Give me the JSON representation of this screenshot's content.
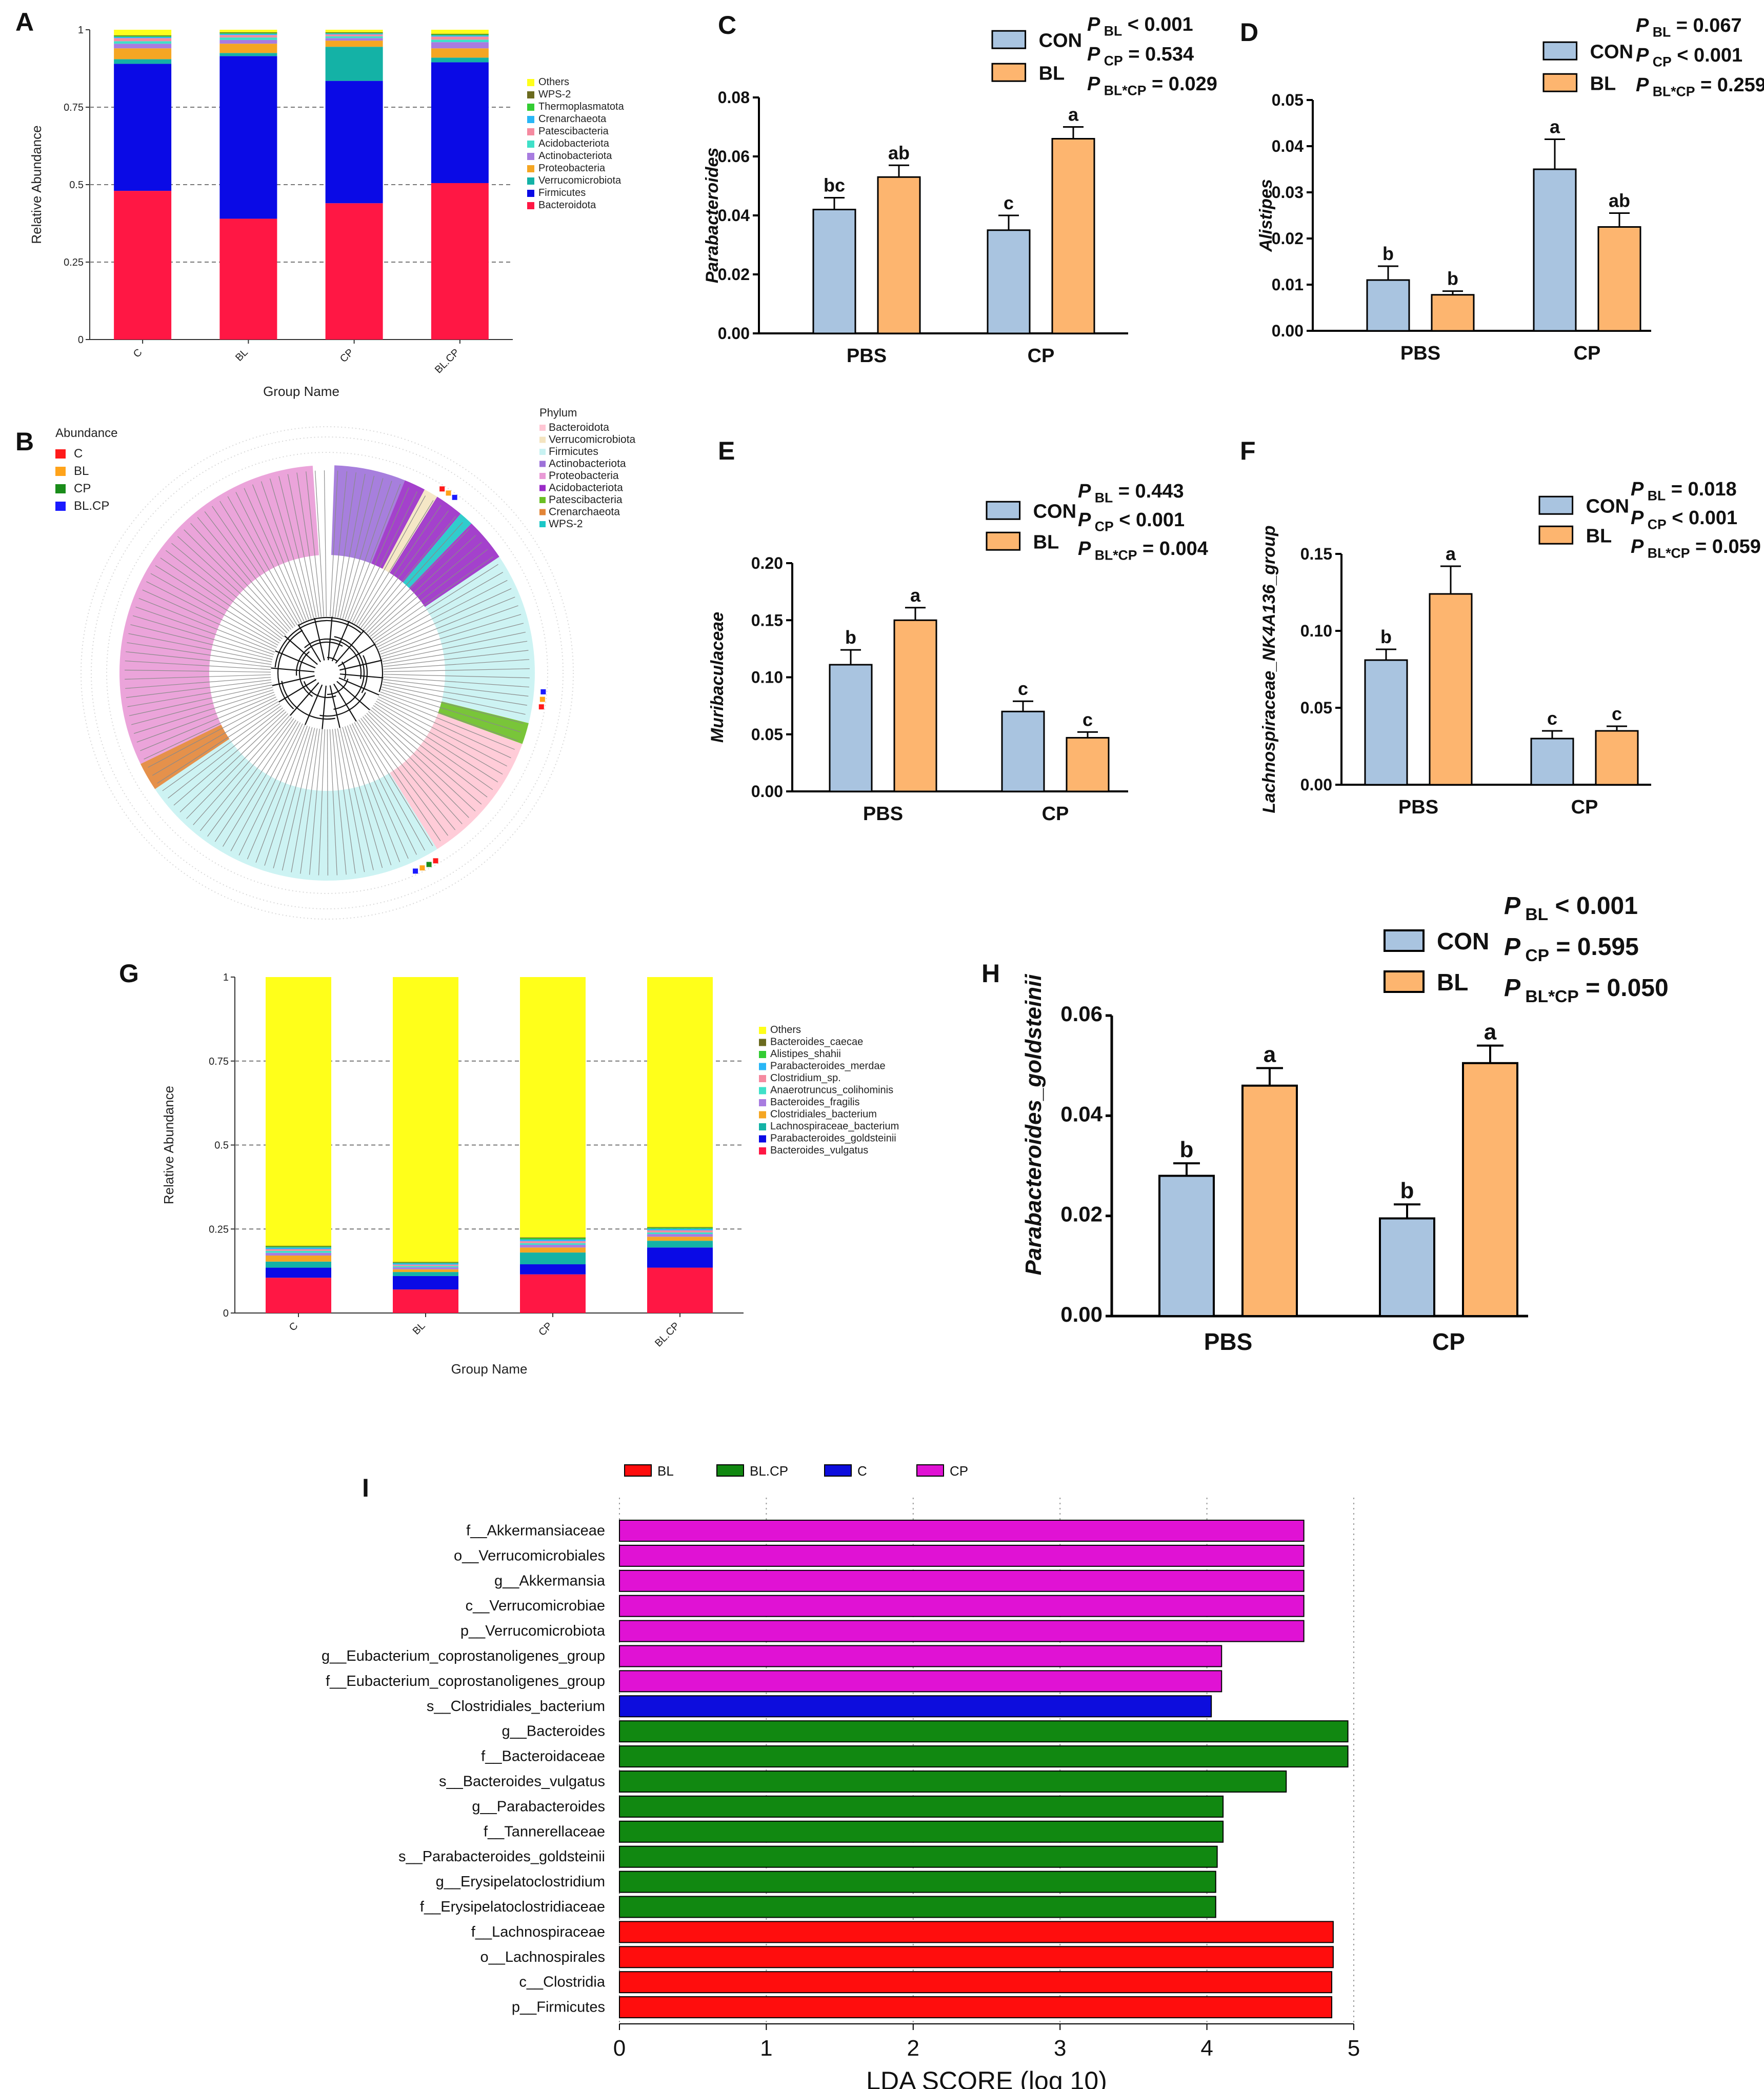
{
  "panels": {
    "A": "A",
    "B": "B",
    "C": "C",
    "D": "D",
    "E": "E",
    "F": "F",
    "G": "G",
    "H": "H",
    "I": "I"
  },
  "colors": {
    "con": "#a9c4e0",
    "bl": "#fdb56f"
  },
  "chart_data": [
    {
      "id": "A",
      "type": "stacked_bar",
      "ylabel": "Relative Abundance",
      "xlabel": "Group Name",
      "categories": [
        "C",
        "BL",
        "CP",
        "BL.CP"
      ],
      "yticks": [
        "0",
        "0.25",
        "0.5",
        "0.75",
        "1"
      ],
      "series": [
        {
          "name": "Bacteroidota",
          "color": "#ff1744",
          "values": [
            0.48,
            0.39,
            0.44,
            0.505
          ]
        },
        {
          "name": "Firmicutes",
          "color": "#0a0ae6",
          "values": [
            0.41,
            0.525,
            0.395,
            0.39
          ]
        },
        {
          "name": "Verrucomicrobiota",
          "color": "#14b2a6",
          "values": [
            0.015,
            0.01,
            0.11,
            0.015
          ]
        },
        {
          "name": "Proteobacteria",
          "color": "#f5a623",
          "values": [
            0.035,
            0.03,
            0.02,
            0.03
          ]
        },
        {
          "name": "Actinobacteriota",
          "color": "#a87ce0",
          "values": [
            0.015,
            0.012,
            0.008,
            0.02
          ]
        },
        {
          "name": "Acidobacteriota",
          "color": "#3fe0c8",
          "values": [
            0.008,
            0.008,
            0.006,
            0.008
          ]
        },
        {
          "name": "Patescibacteria",
          "color": "#f58aa0",
          "values": [
            0.01,
            0.008,
            0.006,
            0.01
          ]
        },
        {
          "name": "Crenarchaeota",
          "color": "#29b6f6",
          "values": [
            0.004,
            0.004,
            0.003,
            0.004
          ]
        },
        {
          "name": "Thermoplasmatota",
          "color": "#33cc33",
          "values": [
            0.003,
            0.003,
            0.002,
            0.003
          ]
        },
        {
          "name": "WPS-2",
          "color": "#6b6b1f",
          "values": [
            0.002,
            0.002,
            0.002,
            0.002
          ]
        },
        {
          "name": "Others",
          "color": "#ffff1a",
          "values": [
            0.018,
            0.008,
            0.008,
            0.013
          ]
        }
      ]
    },
    {
      "id": "C",
      "type": "bar_error",
      "ylabel": "Parabacteroides",
      "categories": [
        "PBS",
        "CP"
      ],
      "yticks": [
        "0.00",
        "0.02",
        "0.04",
        "0.06",
        "0.08"
      ],
      "ymax": 0.08,
      "series": [
        {
          "name": "CON",
          "values": [
            0.042,
            0.035
          ],
          "errors": [
            0.004,
            0.005
          ],
          "letters": [
            "bc",
            "c"
          ]
        },
        {
          "name": "BL",
          "values": [
            0.053,
            0.066
          ],
          "errors": [
            0.004,
            0.004
          ],
          "letters": [
            "ab",
            "a"
          ]
        }
      ],
      "stats": [
        {
          "sub": "BL",
          "text": "< 0.001"
        },
        {
          "sub": "CP",
          "text": "= 0.534"
        },
        {
          "sub": "BL*CP",
          "text": "= 0.029"
        }
      ]
    },
    {
      "id": "D",
      "type": "bar_error",
      "ylabel": "Alistipes",
      "categories": [
        "PBS",
        "CP"
      ],
      "yticks": [
        "0.00",
        "0.01",
        "0.02",
        "0.03",
        "0.04",
        "0.05"
      ],
      "ymax": 0.05,
      "series": [
        {
          "name": "CON",
          "values": [
            0.011,
            0.035
          ],
          "errors": [
            0.003,
            0.0065
          ],
          "letters": [
            "b",
            "a"
          ]
        },
        {
          "name": "BL",
          "values": [
            0.0078,
            0.0225
          ],
          "errors": [
            0.0008,
            0.003
          ],
          "letters": [
            "b",
            "ab"
          ]
        }
      ],
      "stats": [
        {
          "sub": "BL",
          "text": "= 0.067"
        },
        {
          "sub": "CP",
          "text": "< 0.001"
        },
        {
          "sub": "BL*CP",
          "text": "= 0.259"
        }
      ]
    },
    {
      "id": "E",
      "type": "bar_error",
      "ylabel": "Muribaculaceae",
      "categories": [
        "PBS",
        "CP"
      ],
      "yticks": [
        "0.00",
        "0.05",
        "0.10",
        "0.15",
        "0.20"
      ],
      "ymax": 0.2,
      "series": [
        {
          "name": "CON",
          "values": [
            0.111,
            0.07
          ],
          "errors": [
            0.013,
            0.009
          ],
          "letters": [
            "b",
            "c"
          ]
        },
        {
          "name": "BL",
          "values": [
            0.15,
            0.047
          ],
          "errors": [
            0.011,
            0.005
          ],
          "letters": [
            "a",
            "c"
          ]
        }
      ],
      "stats": [
        {
          "sub": "BL",
          "text": "= 0.443"
        },
        {
          "sub": "CP",
          "text": "< 0.001"
        },
        {
          "sub": "BL*CP",
          "text": "= 0.004"
        }
      ]
    },
    {
      "id": "F",
      "type": "bar_error",
      "ylabel": "Lachnospiraceae_NK4A136_group",
      "categories": [
        "PBS",
        "CP"
      ],
      "yticks": [
        "0.00",
        "0.05",
        "0.10",
        "0.15"
      ],
      "ymax": 0.15,
      "series": [
        {
          "name": "CON",
          "values": [
            0.081,
            0.03
          ],
          "errors": [
            0.007,
            0.005
          ],
          "letters": [
            "b",
            "c"
          ]
        },
        {
          "name": "BL",
          "values": [
            0.124,
            0.035
          ],
          "errors": [
            0.018,
            0.003
          ],
          "letters": [
            "a",
            "c"
          ]
        }
      ],
      "stats": [
        {
          "sub": "BL",
          "text": "= 0.018"
        },
        {
          "sub": "CP",
          "text": "< 0.001"
        },
        {
          "sub": "BL*CP",
          "text": "= 0.059"
        }
      ]
    },
    {
      "id": "G",
      "type": "stacked_bar",
      "ylabel": "Relative Abundance",
      "xlabel": "Group Name",
      "categories": [
        "C",
        "BL",
        "CP",
        "BL.CP"
      ],
      "yticks": [
        "0",
        "0.25",
        "0.5",
        "0.75",
        "1"
      ],
      "series": [
        {
          "name": "Bacteroides_vulgatus",
          "color": "#ff1744",
          "values": [
            0.105,
            0.07,
            0.115,
            0.135
          ]
        },
        {
          "name": "Parabacteroides_goldsteinii",
          "color": "#0a0ae6",
          "values": [
            0.03,
            0.04,
            0.03,
            0.06
          ]
        },
        {
          "name": "Lachnospiraceae_bacterium",
          "color": "#14b2a6",
          "values": [
            0.018,
            0.012,
            0.035,
            0.02
          ]
        },
        {
          "name": "Clostridiales_bacterium",
          "color": "#f5a623",
          "values": [
            0.018,
            0.008,
            0.015,
            0.012
          ]
        },
        {
          "name": "Bacteroides_fragilis",
          "color": "#a87ce0",
          "values": [
            0.008,
            0.006,
            0.008,
            0.008
          ]
        },
        {
          "name": "Anaerotruncus_colihominis",
          "color": "#3fe0c8",
          "values": [
            0.006,
            0.004,
            0.005,
            0.005
          ]
        },
        {
          "name": "Clostridium_sp.",
          "color": "#f58aa0",
          "values": [
            0.005,
            0.004,
            0.006,
            0.006
          ]
        },
        {
          "name": "Parabacteroides_merdae",
          "color": "#29b6f6",
          "values": [
            0.005,
            0.004,
            0.005,
            0.005
          ]
        },
        {
          "name": "Alistipes_shahii",
          "color": "#33cc33",
          "values": [
            0.003,
            0.002,
            0.004,
            0.003
          ]
        },
        {
          "name": "Bacteroides_caecae",
          "color": "#6b6b1f",
          "values": [
            0.002,
            0.002,
            0.002,
            0.002
          ]
        },
        {
          "name": "Others",
          "color": "#ffff1a",
          "values": [
            0.8,
            0.848,
            0.775,
            0.744
          ]
        }
      ]
    },
    {
      "id": "H",
      "type": "bar_error",
      "ylabel": "Parabacteroides_goldsteinii",
      "categories": [
        "PBS",
        "CP"
      ],
      "yticks": [
        "0.00",
        "0.02",
        "0.04",
        "0.06"
      ],
      "ymax": 0.06,
      "series": [
        {
          "name": "CON",
          "values": [
            0.028,
            0.0195
          ],
          "errors": [
            0.0025,
            0.0028
          ],
          "letters": [
            "b",
            "b"
          ]
        },
        {
          "name": "BL",
          "values": [
            0.046,
            0.0505
          ],
          "errors": [
            0.0035,
            0.0035
          ],
          "letters": [
            "a",
            "a"
          ]
        }
      ],
      "stats": [
        {
          "sub": "BL",
          "text": "< 0.001"
        },
        {
          "sub": "CP",
          "text": "= 0.595"
        },
        {
          "sub": "BL*CP",
          "text": "= 0.050"
        }
      ]
    },
    {
      "id": "I",
      "type": "bar_horizontal",
      "xlabel": "LDA SCORE (log 10)",
      "xticks": [
        "0",
        "1",
        "2",
        "3",
        "4",
        "5"
      ],
      "xmax": 5,
      "groups": [
        {
          "name": "BL",
          "color": "#ff0d0d"
        },
        {
          "name": "BL.CP",
          "color": "#118811"
        },
        {
          "name": "C",
          "color": "#0d0ddd"
        },
        {
          "name": "CP",
          "color": "#e012d4"
        }
      ],
      "bars": [
        {
          "label": "f__Akkermansiaceae",
          "group": "CP",
          "value": 4.66
        },
        {
          "label": "o__Verrucomicrobiales",
          "group": "CP",
          "value": 4.66
        },
        {
          "label": "g__Akkermansia",
          "group": "CP",
          "value": 4.66
        },
        {
          "label": "c__Verrucomicrobiae",
          "group": "CP",
          "value": 4.66
        },
        {
          "label": "p__Verrucomicrobiota",
          "group": "CP",
          "value": 4.66
        },
        {
          "label": "g__Eubacterium_coprostanoligenes_group",
          "group": "CP",
          "value": 4.1
        },
        {
          "label": "f__Eubacterium_coprostanoligenes_group",
          "group": "CP",
          "value": 4.1
        },
        {
          "label": "s__Clostridiales_bacterium",
          "group": "C",
          "value": 4.03
        },
        {
          "label": "g__Bacteroides",
          "group": "BL.CP",
          "value": 4.96
        },
        {
          "label": "f__Bacteroidaceae",
          "group": "BL.CP",
          "value": 4.96
        },
        {
          "label": "s__Bacteroides_vulgatus",
          "group": "BL.CP",
          "value": 4.54
        },
        {
          "label": "g__Parabacteroides",
          "group": "BL.CP",
          "value": 4.11
        },
        {
          "label": "f__Tannerellaceae",
          "group": "BL.CP",
          "value": 4.11
        },
        {
          "label": "s__Parabacteroides_goldsteinii",
          "group": "BL.CP",
          "value": 4.07
        },
        {
          "label": "g__Erysipelatoclostridium",
          "group": "BL.CP",
          "value": 4.06
        },
        {
          "label": "f__Erysipelatoclostridiaceae",
          "group": "BL.CP",
          "value": 4.06
        },
        {
          "label": "f__Lachnospiraceae",
          "group": "BL",
          "value": 4.86
        },
        {
          "label": "o__Lachnospirales",
          "group": "BL",
          "value": 4.86
        },
        {
          "label": "c__Clostridia",
          "group": "BL",
          "value": 4.85
        },
        {
          "label": "p__Firmicutes",
          "group": "BL",
          "value": 4.85
        }
      ]
    }
  ],
  "tree": {
    "abundance_title": "Abundance",
    "abundance_legend": [
      {
        "name": "C",
        "color": "#ff1a1a"
      },
      {
        "name": "BL",
        "color": "#ffa31a"
      },
      {
        "name": "CP",
        "color": "#1a8c1a"
      },
      {
        "name": "BL.CP",
        "color": "#1a1aff"
      }
    ],
    "phylum_title": "Phylum",
    "phylum_legend": [
      {
        "name": "Bacteroidota",
        "color": "#ffc6d4"
      },
      {
        "name": "Verrucomicrobiota",
        "color": "#f4e4c0"
      },
      {
        "name": "Firmicutes",
        "color": "#c8f2f2"
      },
      {
        "name": "Actinobacteriota",
        "color": "#9d71d9"
      },
      {
        "name": "Proteobacteria",
        "color": "#e99ad6"
      },
      {
        "name": "Acidobacteriota",
        "color": "#9a2cc7"
      },
      {
        "name": "Patescibacteria",
        "color": "#6abf23"
      },
      {
        "name": "Crenarchaeota",
        "color": "#e28537"
      },
      {
        "name": "WPS-2",
        "color": "#1bc7c7"
      }
    ]
  }
}
